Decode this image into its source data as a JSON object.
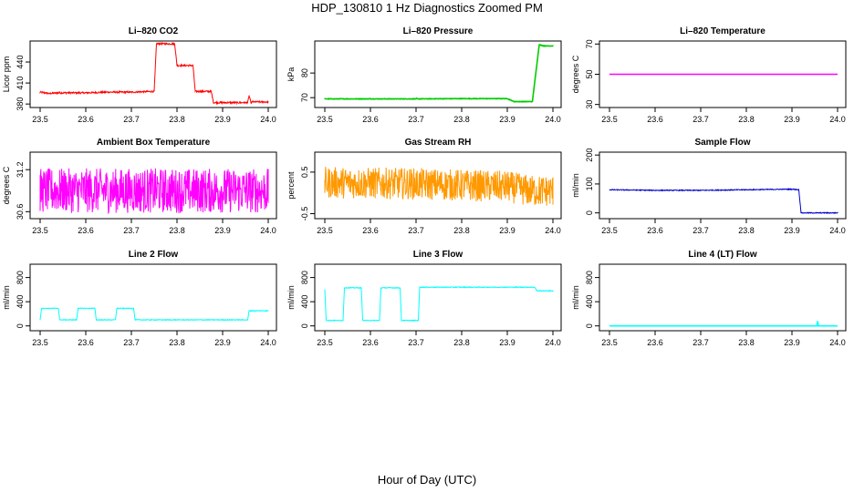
{
  "title": "HDP_130810  1 Hz Diagnostics Zoomed PM",
  "xlabel": "Hour of Day (UTC)",
  "chart_data": [
    {
      "type": "line",
      "title": "Li–820 CO2",
      "ylabel": "Licor ppm",
      "color": "#ff0000",
      "xlim": [
        23.49,
        24.01
      ],
      "ylim": [
        375,
        470
      ],
      "xticks": [
        23.5,
        23.6,
        23.7,
        23.8,
        23.9,
        24.0
      ],
      "xtick_labels": [
        "23.5",
        "23.6",
        "23.7",
        "23.8",
        "23.9",
        "24.0"
      ],
      "yticks": [
        380,
        410,
        440
      ],
      "ytick_labels": [
        "380",
        "410",
        "440"
      ],
      "noise": 1.2,
      "series": [
        {
          "x": [
            23.5,
            23.52,
            23.54,
            23.6,
            23.65,
            23.7,
            23.75,
            23.755,
            23.795,
            23.8,
            23.835,
            23.84,
            23.875,
            23.88,
            23.9,
            23.955,
            23.958,
            23.962,
            23.965,
            24.0
          ],
          "y": [
            397,
            395,
            396,
            396,
            397,
            397,
            398,
            466,
            466,
            435,
            435,
            398,
            398,
            382,
            382,
            382,
            392,
            382,
            383,
            383
          ]
        }
      ]
    },
    {
      "type": "line",
      "title": "Li–820 Pressure",
      "ylabel": "kPa",
      "color": "#00cc00",
      "xlim": [
        23.49,
        24.01
      ],
      "ylim": [
        66,
        93
      ],
      "xticks": [
        23.5,
        23.6,
        23.7,
        23.8,
        23.9,
        24.0
      ],
      "xtick_labels": [
        "23.5",
        "23.6",
        "23.7",
        "23.8",
        "23.9",
        "24.0"
      ],
      "yticks": [
        70,
        80
      ],
      "ytick_labels": [
        "70",
        "80"
      ],
      "noise": 0.1,
      "series": [
        {
          "x": [
            23.5,
            23.6,
            23.7,
            23.8,
            23.9,
            23.915,
            23.955,
            23.97,
            23.98,
            24.0
          ],
          "y": [
            69.5,
            69.5,
            69.5,
            69.6,
            69.6,
            68.4,
            68.4,
            91.5,
            91.0,
            91.0
          ]
        }
      ]
    },
    {
      "type": "line",
      "title": "Li–820 Temperature",
      "ylabel": "degrees C",
      "color": "#ff00ff",
      "xlim": [
        23.49,
        24.01
      ],
      "ylim": [
        28,
        72
      ],
      "xticks": [
        23.5,
        23.6,
        23.7,
        23.8,
        23.9,
        24.0
      ],
      "xtick_labels": [
        "23.5",
        "23.6",
        "23.7",
        "23.8",
        "23.9",
        "24.0"
      ],
      "yticks": [
        30,
        50,
        70
      ],
      "ytick_labels": [
        "30",
        "50",
        "70"
      ],
      "noise": 0,
      "series": [
        {
          "x": [
            23.5,
            24.0
          ],
          "y": [
            50,
            50
          ]
        }
      ]
    },
    {
      "type": "line",
      "title": "Ambient Box Temperature",
      "ylabel": "degrees C",
      "color": "#ff00ff",
      "xlim": [
        23.49,
        24.01
      ],
      "ylim": [
        30.5,
        31.45
      ],
      "xticks": [
        23.5,
        23.6,
        23.7,
        23.8,
        23.9,
        24.0
      ],
      "xtick_labels": [
        "23.5",
        "23.6",
        "23.7",
        "23.8",
        "23.9",
        "24.0"
      ],
      "yticks": [
        30.6,
        31.2
      ],
      "ytick_labels": [
        "30.6",
        "31.2"
      ],
      "noise": 0.32,
      "series": [
        {
          "x": [
            23.5,
            24.0
          ],
          "y": [
            30.9,
            30.9
          ]
        }
      ]
    },
    {
      "type": "line",
      "title": "Gas Stream RH",
      "ylabel": "percent",
      "color": "#ff9900",
      "xlim": [
        23.49,
        24.01
      ],
      "ylim": [
        -0.62,
        0.98
      ],
      "xticks": [
        23.5,
        23.6,
        23.7,
        23.8,
        23.9,
        24.0
      ],
      "xtick_labels": [
        "23.5",
        "23.6",
        "23.7",
        "23.8",
        "23.9",
        "24.0"
      ],
      "yticks": [
        -0.5,
        0.5
      ],
      "ytick_labels": [
        "-0.5",
        "0.5"
      ],
      "noise": 0.38,
      "series": [
        {
          "x": [
            23.5,
            23.7,
            23.9,
            23.95,
            24.0
          ],
          "y": [
            0.25,
            0.22,
            0.15,
            0.05,
            0.05
          ]
        }
      ]
    },
    {
      "type": "line",
      "title": "Sample Flow",
      "ylabel": "ml/min",
      "color": "#0000cc",
      "xlim": [
        23.49,
        24.01
      ],
      "ylim": [
        -20,
        210
      ],
      "xticks": [
        23.5,
        23.6,
        23.7,
        23.8,
        23.9,
        24.0
      ],
      "xtick_labels": [
        "23.5",
        "23.6",
        "23.7",
        "23.8",
        "23.9",
        "24.0"
      ],
      "yticks": [
        0,
        100,
        200
      ],
      "ytick_labels": [
        "0",
        "100",
        "200"
      ],
      "noise": 1.5,
      "series": [
        {
          "x": [
            23.5,
            23.6,
            23.7,
            23.8,
            23.9,
            23.915,
            23.92,
            24.0
          ],
          "y": [
            80,
            78,
            78,
            80,
            82,
            80,
            0,
            0
          ]
        }
      ]
    },
    {
      "type": "line",
      "title": "Line 2 Flow",
      "ylabel": "ml/min",
      "color": "#00ffff",
      "xlim": [
        23.49,
        24.01
      ],
      "ylim": [
        -80,
        1020
      ],
      "xticks": [
        23.5,
        23.6,
        23.7,
        23.8,
        23.9,
        24.0
      ],
      "xtick_labels": [
        "23.5",
        "23.6",
        "23.7",
        "23.8",
        "23.9",
        "24.0"
      ],
      "yticks": [
        0,
        400,
        800
      ],
      "ytick_labels": [
        "0",
        "400",
        "800"
      ],
      "noise": 6,
      "series": [
        {
          "x": [
            23.5,
            23.503,
            23.54,
            23.543,
            23.58,
            23.583,
            23.62,
            23.623,
            23.665,
            23.668,
            23.705,
            23.708,
            23.955,
            23.958,
            24.0
          ],
          "y": [
            100,
            290,
            290,
            100,
            100,
            290,
            290,
            100,
            100,
            290,
            290,
            100,
            100,
            250,
            250
          ]
        }
      ]
    },
    {
      "type": "line",
      "title": "Line 3 Flow",
      "ylabel": "ml/min",
      "color": "#00ffff",
      "xlim": [
        23.49,
        24.01
      ],
      "ylim": [
        -80,
        1020
      ],
      "xticks": [
        23.5,
        23.6,
        23.7,
        23.8,
        23.9,
        24.0
      ],
      "xtick_labels": [
        "23.5",
        "23.6",
        "23.7",
        "23.8",
        "23.9",
        "24.0"
      ],
      "yticks": [
        0,
        400,
        800
      ],
      "ytick_labels": [
        "0",
        "400",
        "800"
      ],
      "noise": 6,
      "series": [
        {
          "x": [
            23.5,
            23.503,
            23.54,
            23.543,
            23.58,
            23.583,
            23.62,
            23.623,
            23.665,
            23.668,
            23.705,
            23.708,
            23.96,
            23.965,
            24.0
          ],
          "y": [
            600,
            90,
            90,
            630,
            630,
            90,
            90,
            630,
            630,
            90,
            90,
            640,
            640,
            580,
            580
          ]
        }
      ]
    },
    {
      "type": "line",
      "title": "Line 4 (LT) Flow",
      "ylabel": "ml/min",
      "color": "#00ffff",
      "xlim": [
        23.49,
        24.01
      ],
      "ylim": [
        -80,
        1020
      ],
      "xticks": [
        23.5,
        23.6,
        23.7,
        23.8,
        23.9,
        24.0
      ],
      "xtick_labels": [
        "23.5",
        "23.6",
        "23.7",
        "23.8",
        "23.9",
        "24.0"
      ],
      "yticks": [
        0,
        400,
        800
      ],
      "ytick_labels": [
        "0",
        "400",
        "800"
      ],
      "noise": 0,
      "series": [
        {
          "x": [
            23.5,
            23.955,
            23.956,
            23.958,
            23.96,
            24.0
          ],
          "y": [
            0,
            0,
            80,
            0,
            0,
            0
          ]
        }
      ]
    }
  ]
}
